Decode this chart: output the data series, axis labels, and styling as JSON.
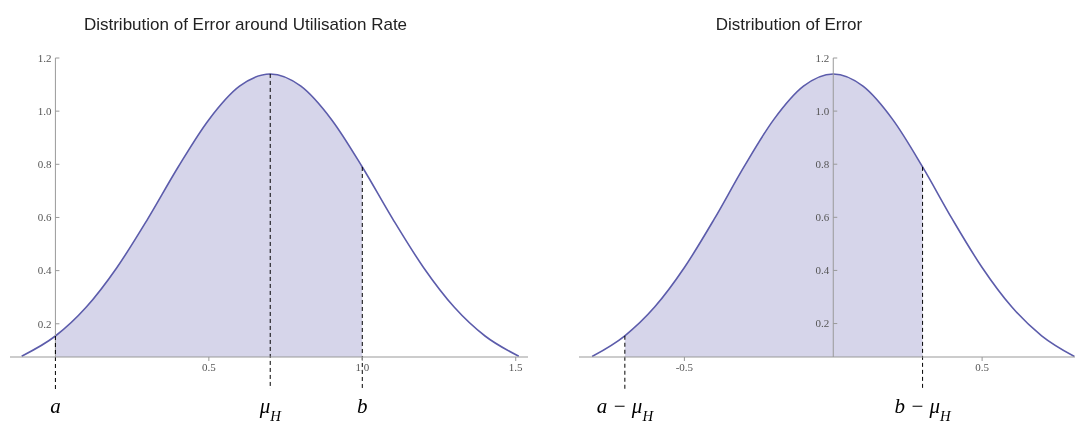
{
  "chart_data": [
    {
      "type": "line",
      "title": "Distribution of Error around Utilisation Rate",
      "xlim": [
        -0.148,
        1.54
      ],
      "ylim": [
        0.075,
        1.2
      ],
      "xticks": [
        0.5,
        {
          "value": 1,
          "label": "1.0"
        },
        1.5
      ],
      "yticks": [
        0.2,
        0.4,
        0.6,
        0.8,
        {
          "value": 1,
          "label": "1.0"
        },
        1.2
      ],
      "series": [
        {
          "type": "area",
          "color": "#d6d5ea",
          "x": [
            0,
            0.1,
            0.2,
            0.3,
            0.4,
            0.5,
            0.6,
            0.7,
            0.8,
            0.9,
            1.0
          ],
          "values": [
            0.154,
            0.262,
            0.411,
            0.593,
            0.79,
            0.968,
            1.094,
            1.14,
            1.094,
            0.968,
            0.79
          ]
        },
        {
          "color": "#5c5cab",
          "x": [
            -0.11,
            0,
            0.1,
            0.2,
            0.3,
            0.4,
            0.5,
            0.6,
            0.7,
            0.8,
            0.9,
            1.0,
            1.1,
            1.2,
            1.3,
            1.4,
            1.51
          ],
          "values": [
            0.078,
            0.154,
            0.262,
            0.411,
            0.593,
            0.79,
            0.968,
            1.094,
            1.14,
            1.094,
            0.968,
            0.79,
            0.593,
            0.411,
            0.262,
            0.154,
            0.078
          ]
        }
      ],
      "ref_lines": [
        {
          "axis": "x",
          "value": 0,
          "label": "a",
          "line_style": "dashed",
          "color": "#000000"
        },
        {
          "axis": "x",
          "value": 0.7,
          "label": "μ$_{H}$",
          "line_style": "dashed",
          "color": "#000000"
        },
        {
          "axis": "x",
          "value": 1.0,
          "label": "b",
          "line_style": "dashed",
          "color": "#000000"
        }
      ]
    },
    {
      "type": "line",
      "title": "Distribution of Error",
      "xlim": [
        -0.854,
        0.812
      ],
      "ylim": [
        0.074,
        1.2
      ],
      "xticks": [
        -0.5,
        0.5
      ],
      "yticks": [
        0.2,
        0.4,
        0.6,
        0.8,
        {
          "value": 1,
          "label": "1.0"
        },
        1.2
      ],
      "series": [
        {
          "type": "area",
          "color": "#d6d5ea",
          "x": [
            -0.7,
            -0.6,
            -0.5,
            -0.4,
            -0.3,
            -0.2,
            -0.1,
            0,
            0.1,
            0.2,
            0.3
          ],
          "values": [
            0.154,
            0.262,
            0.411,
            0.593,
            0.79,
            0.968,
            1.094,
            1.14,
            1.094,
            0.968,
            0.79
          ]
        },
        {
          "color": "#5c5cab",
          "x": [
            -0.81,
            -0.7,
            -0.6,
            -0.5,
            -0.4,
            -0.3,
            -0.2,
            -0.1,
            0,
            0.1,
            0.2,
            0.3,
            0.4,
            0.5,
            0.6,
            0.7,
            0.81
          ],
          "values": [
            0.076,
            0.154,
            0.262,
            0.411,
            0.593,
            0.79,
            0.968,
            1.094,
            1.14,
            1.094,
            0.968,
            0.79,
            0.593,
            0.411,
            0.262,
            0.154,
            0.076
          ]
        }
      ],
      "ref_lines": [
        {
          "axis": "x",
          "value": -0.7,
          "label": "a − μ$_{H}$",
          "line_style": "dashed",
          "color": "#000000"
        },
        {
          "axis": "x",
          "value": 0.3,
          "label": "b − μ$_{H}$",
          "line_style": "dashed",
          "color": "#000000"
        }
      ]
    }
  ]
}
